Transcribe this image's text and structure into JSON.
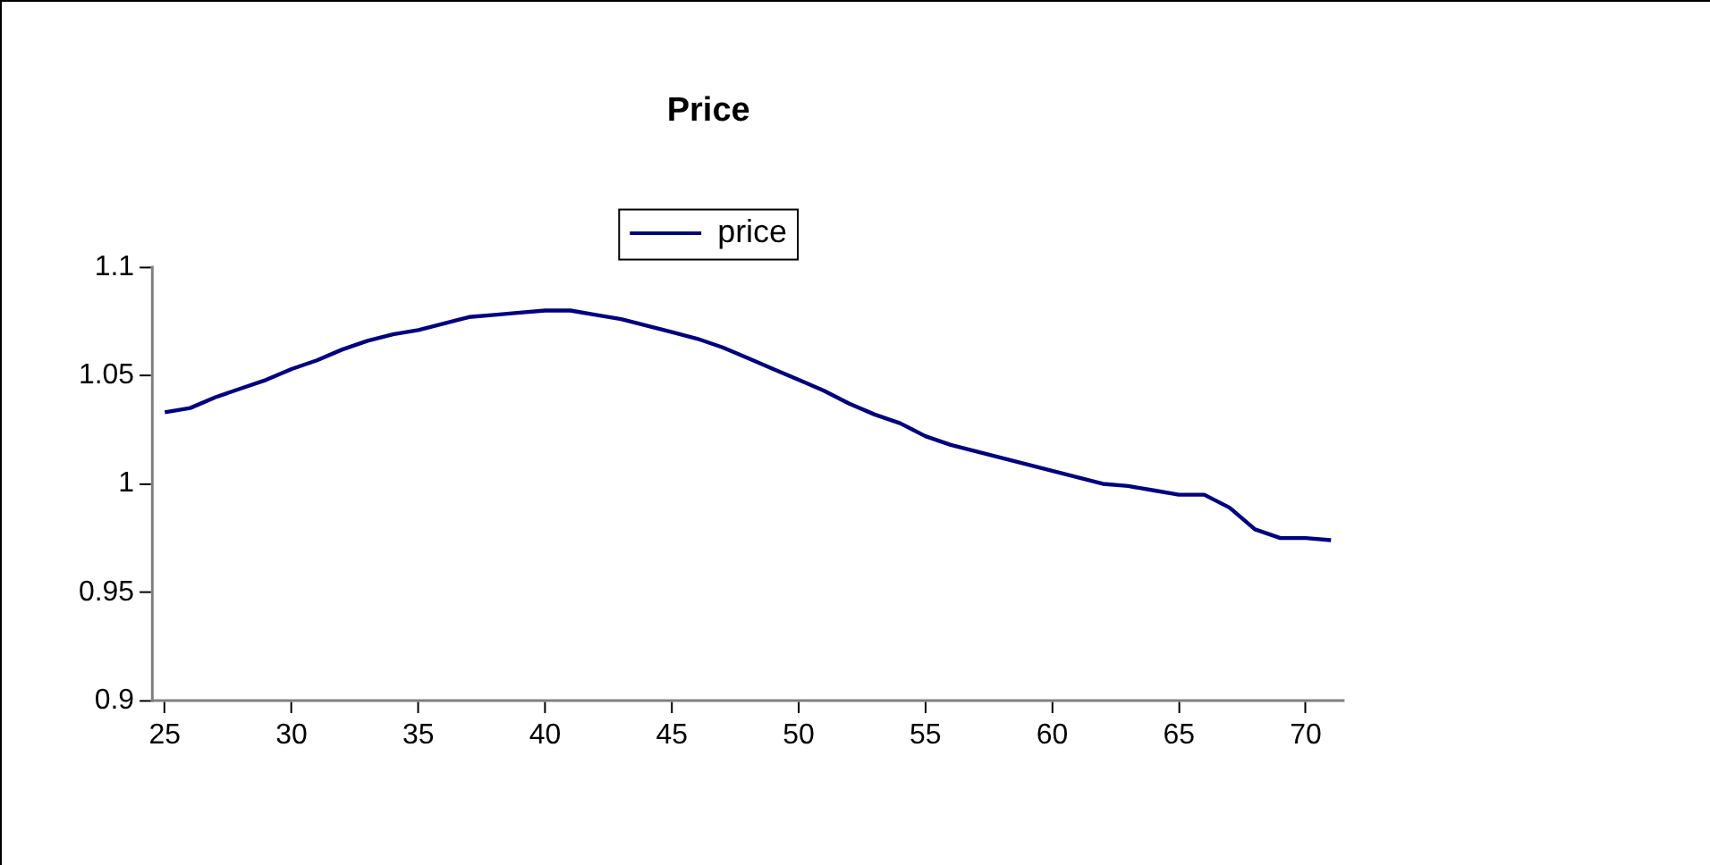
{
  "chart_data": {
    "type": "line",
    "title": "Price",
    "x": [
      25,
      26,
      27,
      28,
      29,
      30,
      31,
      32,
      33,
      34,
      35,
      36,
      37,
      38,
      39,
      40,
      41,
      42,
      43,
      44,
      45,
      46,
      47,
      48,
      49,
      50,
      51,
      52,
      53,
      54,
      55,
      56,
      57,
      58,
      59,
      60,
      61,
      62,
      63,
      64,
      65,
      66,
      67,
      68,
      69,
      70,
      71
    ],
    "series": [
      {
        "name": "price",
        "color": "#000080",
        "values": [
          1.033,
          1.035,
          1.04,
          1.044,
          1.048,
          1.053,
          1.057,
          1.062,
          1.066,
          1.069,
          1.071,
          1.074,
          1.077,
          1.078,
          1.079,
          1.08,
          1.08,
          1.078,
          1.076,
          1.073,
          1.07,
          1.067,
          1.063,
          1.058,
          1.053,
          1.048,
          1.043,
          1.037,
          1.032,
          1.028,
          1.022,
          1.018,
          1.015,
          1.012,
          1.009,
          1.006,
          1.003,
          1.0,
          0.999,
          0.997,
          0.995,
          0.995,
          0.989,
          0.979,
          0.975,
          0.975,
          0.974
        ]
      }
    ],
    "xlim": [
      24.5,
      71.5
    ],
    "xticks": [
      25,
      30,
      35,
      40,
      45,
      50,
      55,
      60,
      65,
      70
    ],
    "ylim": [
      0.9,
      1.1
    ],
    "yticks": [
      0.9,
      0.95,
      1,
      1.05,
      1.1
    ],
    "grid": false,
    "legend": "top",
    "marker": "none",
    "line_style": "solid"
  }
}
